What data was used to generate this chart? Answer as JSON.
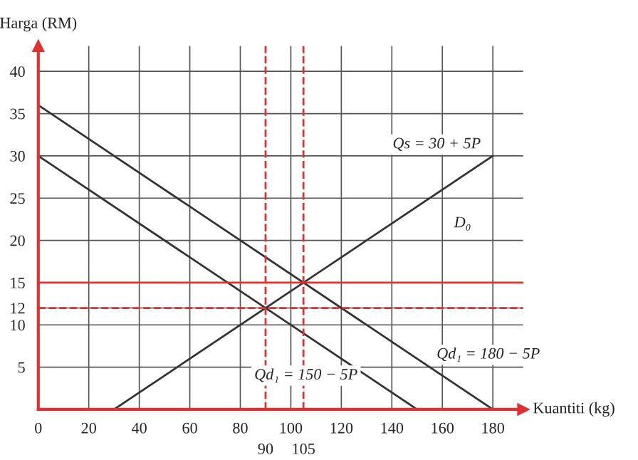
{
  "chart_data": {
    "type": "line",
    "xlabel": "Kuantiti (kg)",
    "ylabel": "Harga (RM)",
    "xlim": [
      0,
      192
    ],
    "ylim": [
      0,
      43
    ],
    "xticks": [
      0,
      20,
      40,
      60,
      80,
      100,
      120,
      140,
      160,
      180
    ],
    "yticks": [
      5,
      10,
      12,
      15,
      20,
      25,
      30,
      35,
      40
    ],
    "grid": true,
    "marker": "none",
    "line_style": "solid",
    "series": [
      {
        "color": "#333333",
        "x": [
          30,
          180
        ],
        "values": [
          0,
          30
        ]
      },
      {
        "color": "#333333",
        "x": [
          0,
          150
        ],
        "values": [
          30,
          0
        ]
      },
      {
        "color": "#333333",
        "x": [
          0,
          180
        ],
        "values": [
          36,
          0
        ]
      }
    ],
    "ref_lines": [
      {
        "axis": "y",
        "value": 15,
        "color": "#e03030",
        "line_style": "solid"
      },
      {
        "axis": "y",
        "value": 12,
        "color": "#e03030",
        "line_style": "dashed"
      },
      {
        "axis": "x",
        "value": 90,
        "label": "90",
        "color": "#e03030",
        "line_style": "dashed"
      },
      {
        "axis": "x",
        "value": 105,
        "label": "105",
        "color": "#e03030",
        "line_style": "dashed"
      }
    ],
    "annotations": [
      {
        "text": "Qs = 30 + 5P",
        "x": 175,
        "y": 29
      },
      {
        "text": "D₀",
        "x": 168,
        "y": 22
      },
      {
        "text": "Qd₁ = 180 − 5P",
        "x": 150,
        "y": 6
      },
      {
        "text": "Qd₁ = 150 − 5P",
        "x": 106,
        "y": 4
      }
    ]
  }
}
